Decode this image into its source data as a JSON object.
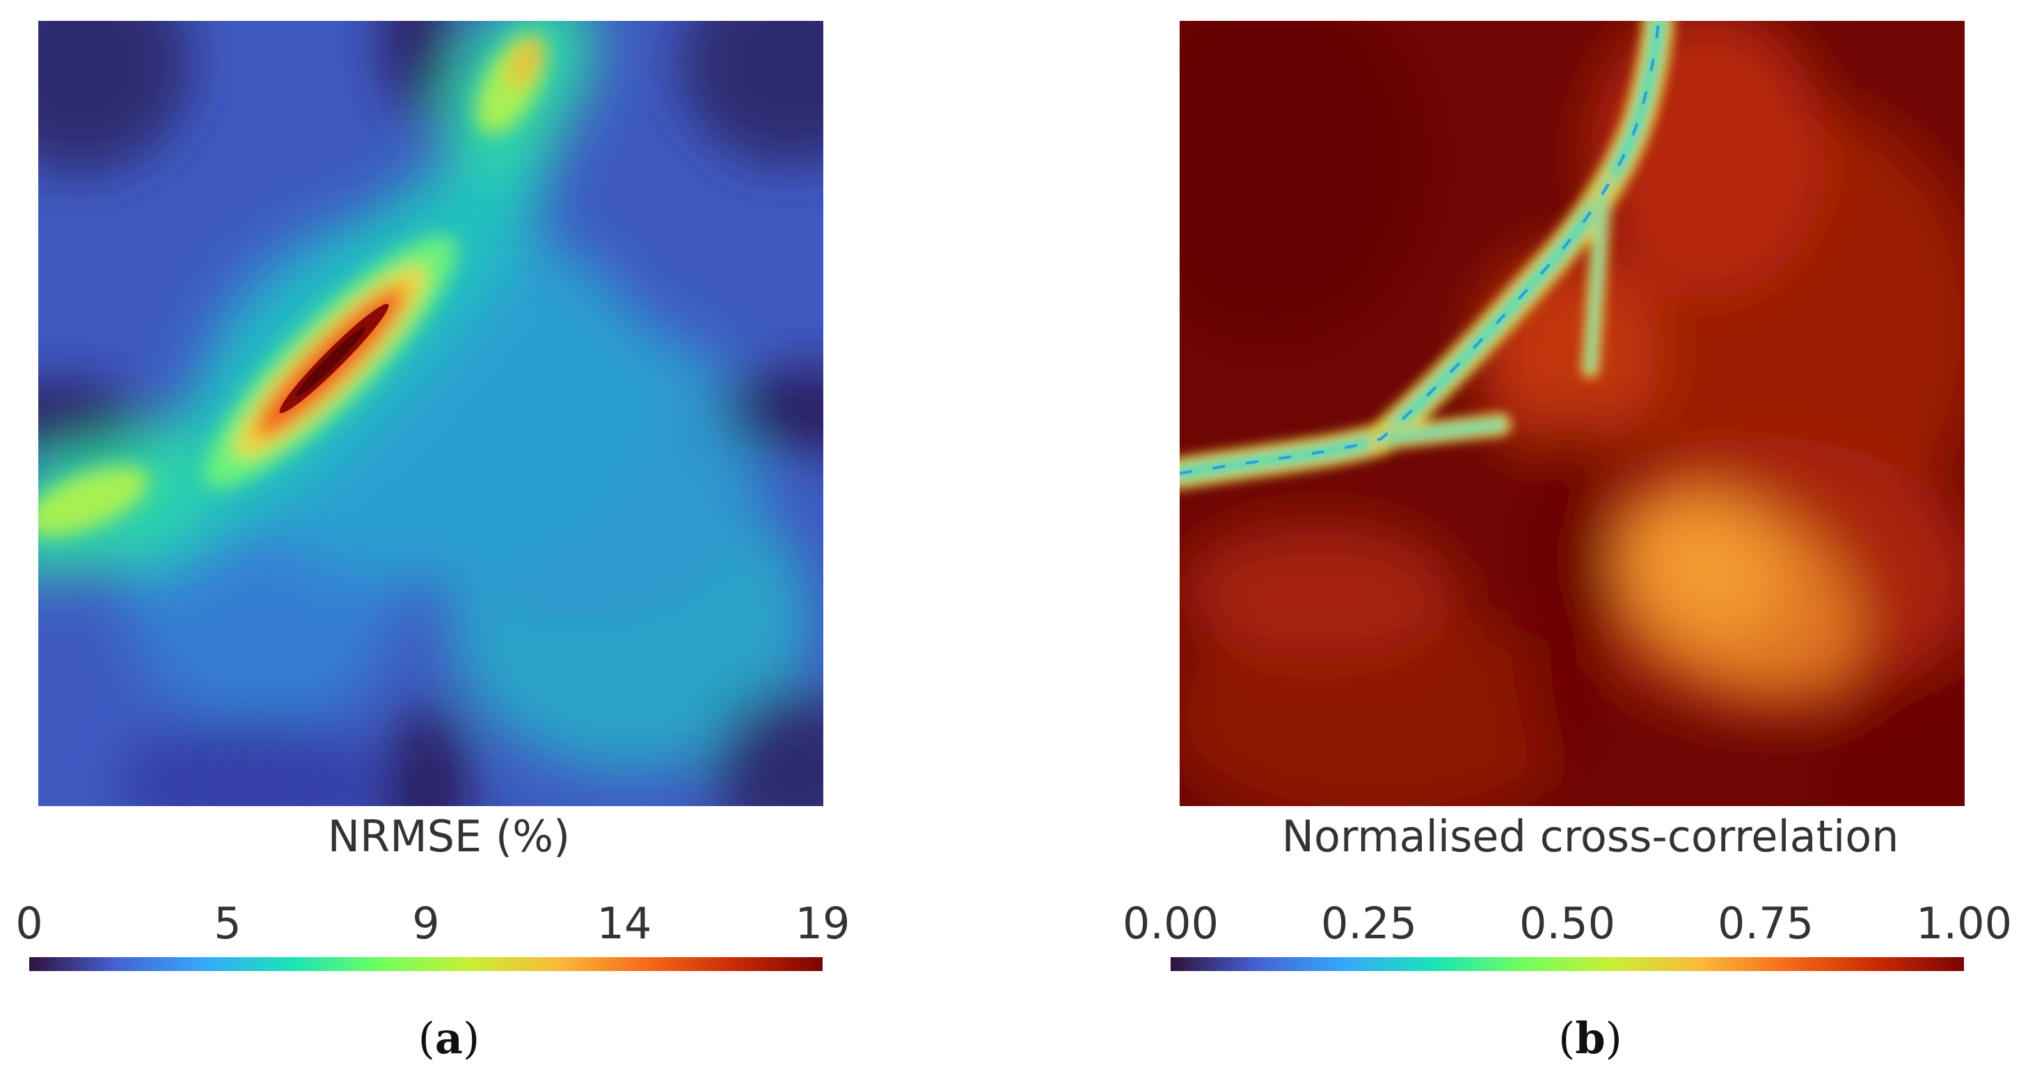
{
  "colormap": [
    "#30123b",
    "#4662d7",
    "#36aaf9",
    "#1ae4b6",
    "#72fe5e",
    "#c8ef34",
    "#faba39",
    "#f66b19",
    "#ca2a04",
    "#7a0403"
  ],
  "chart_data": [
    {
      "type": "heatmap",
      "panel": "(a)",
      "label": "NRMSE (%)",
      "colorbar": {
        "ticks": [
          "0",
          "5",
          "9",
          "14",
          "19"
        ],
        "range": [
          0,
          19
        ]
      },
      "description_features": {
        "diagonal_ridge": "high error band running from lower-left to upper-right through the center",
        "max_region": "dark red ellipse left of center on the diagonal",
        "background_level": "moderate blue/teal values across the field",
        "low_lines": "dark minima along the vertical and horizontal center lines near edges"
      }
    },
    {
      "type": "heatmap",
      "panel": "(b)",
      "label": "Normalised cross-correlation",
      "colorbar": {
        "ticks": [
          "0.00",
          "0.25",
          "0.50",
          "0.75",
          "1.00"
        ],
        "range": [
          0.0,
          1.0
        ]
      },
      "description_features": {
        "background_level": "values near 1.00 (dark red) across most of the field",
        "low_band": "thin low-correlation curve from left edge sweeping up to the top",
        "bright_lobe": "orange region in lower-right quadrant"
      }
    }
  ],
  "panels": {
    "a": {
      "label": "NRMSE (%)",
      "sub": "a",
      "ticks": [
        "0",
        "5",
        "9",
        "14",
        "19"
      ]
    },
    "b": {
      "label": "Normalised cross-correlation",
      "sub": "b",
      "ticks": [
        "0.00",
        "0.25",
        "0.50",
        "0.75",
        "1.00"
      ]
    }
  }
}
